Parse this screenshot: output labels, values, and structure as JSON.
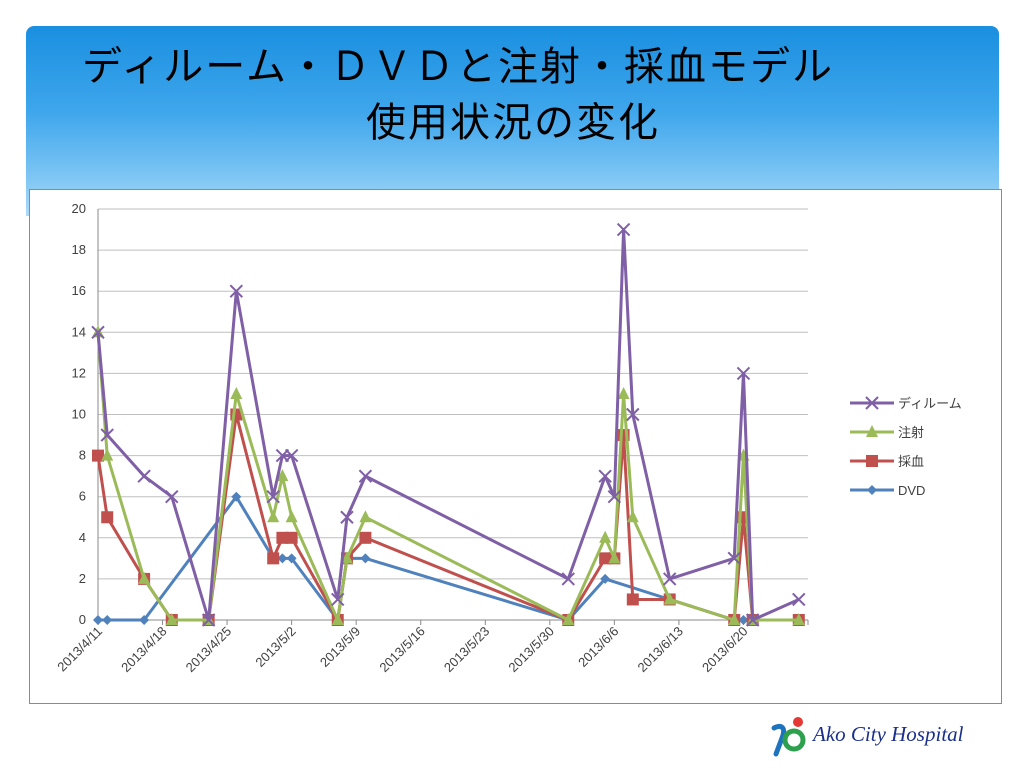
{
  "slide": {
    "title_line1": "ディルーム・ＤＶＤと注射・採血モデル",
    "title_line2": "使用状況の変化",
    "logo_text": "Ako City Hospital"
  },
  "chart_data": {
    "type": "line",
    "title": "",
    "xlabel": "",
    "ylabel": "",
    "ylim": [
      0,
      20
    ],
    "yticks": [
      0,
      2,
      4,
      6,
      8,
      10,
      12,
      14,
      16,
      18,
      20
    ],
    "grid": true,
    "legend": "right",
    "x_tick_labels": [
      "2013/4/11",
      "2013/4/18",
      "2013/4/25",
      "2013/5/2",
      "2013/5/9",
      "2013/5/16",
      "2013/5/23",
      "2013/5/30",
      "2013/6/6",
      "2013/6/13",
      "2013/6/20"
    ],
    "x": [
      "2013/4/11",
      "2013/4/12",
      "2013/4/16",
      "2013/4/19",
      "2013/4/23",
      "2013/4/26",
      "2013/4/30",
      "2013/5/1",
      "2013/5/2",
      "2013/5/7",
      "2013/5/8",
      "2013/5/10",
      "2013/6/1",
      "2013/6/5",
      "2013/6/6",
      "2013/6/7",
      "2013/6/8",
      "2013/6/12",
      "2013/6/19",
      "2013/6/20",
      "2013/6/21",
      "2013/6/26"
    ],
    "series": [
      {
        "name": "ディルーム",
        "color": "#7f5fa6",
        "marker": "x",
        "values": [
          14,
          9,
          7,
          6,
          0,
          16,
          6,
          8,
          8,
          1,
          5,
          7,
          2,
          7,
          6,
          19,
          10,
          2,
          3,
          12,
          0,
          1
        ]
      },
      {
        "name": "注射",
        "color": "#9bbb59",
        "marker": "triangle",
        "values": [
          14,
          8,
          2,
          0,
          0,
          11,
          5,
          7,
          5,
          0,
          3,
          5,
          0,
          4,
          3,
          11,
          5,
          1,
          0,
          8,
          0,
          0
        ]
      },
      {
        "name": "採血",
        "color": "#c0504d",
        "marker": "square",
        "values": [
          8,
          5,
          2,
          0,
          0,
          10,
          3,
          4,
          4,
          0,
          3,
          4,
          0,
          3,
          3,
          9,
          1,
          1,
          0,
          5,
          0,
          0
        ]
      },
      {
        "name": "DVD",
        "color": "#4f81bd",
        "marker": "diamond",
        "values": [
          0,
          0,
          0,
          null,
          null,
          6,
          3,
          3,
          3,
          0,
          3,
          3,
          0,
          2,
          null,
          null,
          null,
          null,
          0,
          0,
          0,
          0
        ]
      }
    ]
  }
}
